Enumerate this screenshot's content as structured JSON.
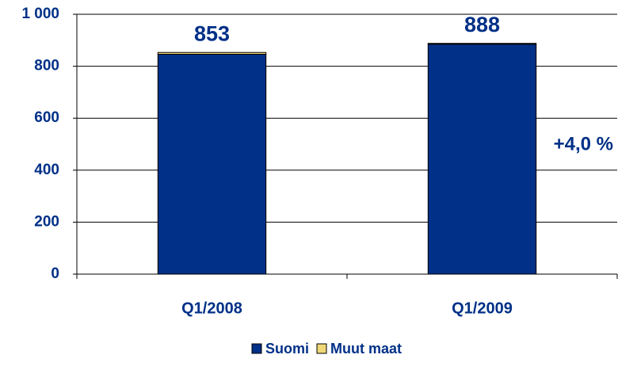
{
  "chart_data": {
    "type": "stacked_bar",
    "categories": [
      "Q1/2008",
      "Q1/2009"
    ],
    "series": [
      {
        "name": "Suomi",
        "color": "#003087",
        "values": [
          846,
          885
        ]
      },
      {
        "name": "Muut maat",
        "color": "#f0d878",
        "values": [
          7,
          3
        ]
      }
    ],
    "totals": [
      853,
      888
    ],
    "annotation": "+4,0 %",
    "ylim": [
      0,
      1000
    ],
    "yticks": [
      0,
      200,
      400,
      600,
      800,
      {
        "value": 1000,
        "label": "1 000"
      }
    ],
    "grid": true,
    "legend": "bottom"
  }
}
